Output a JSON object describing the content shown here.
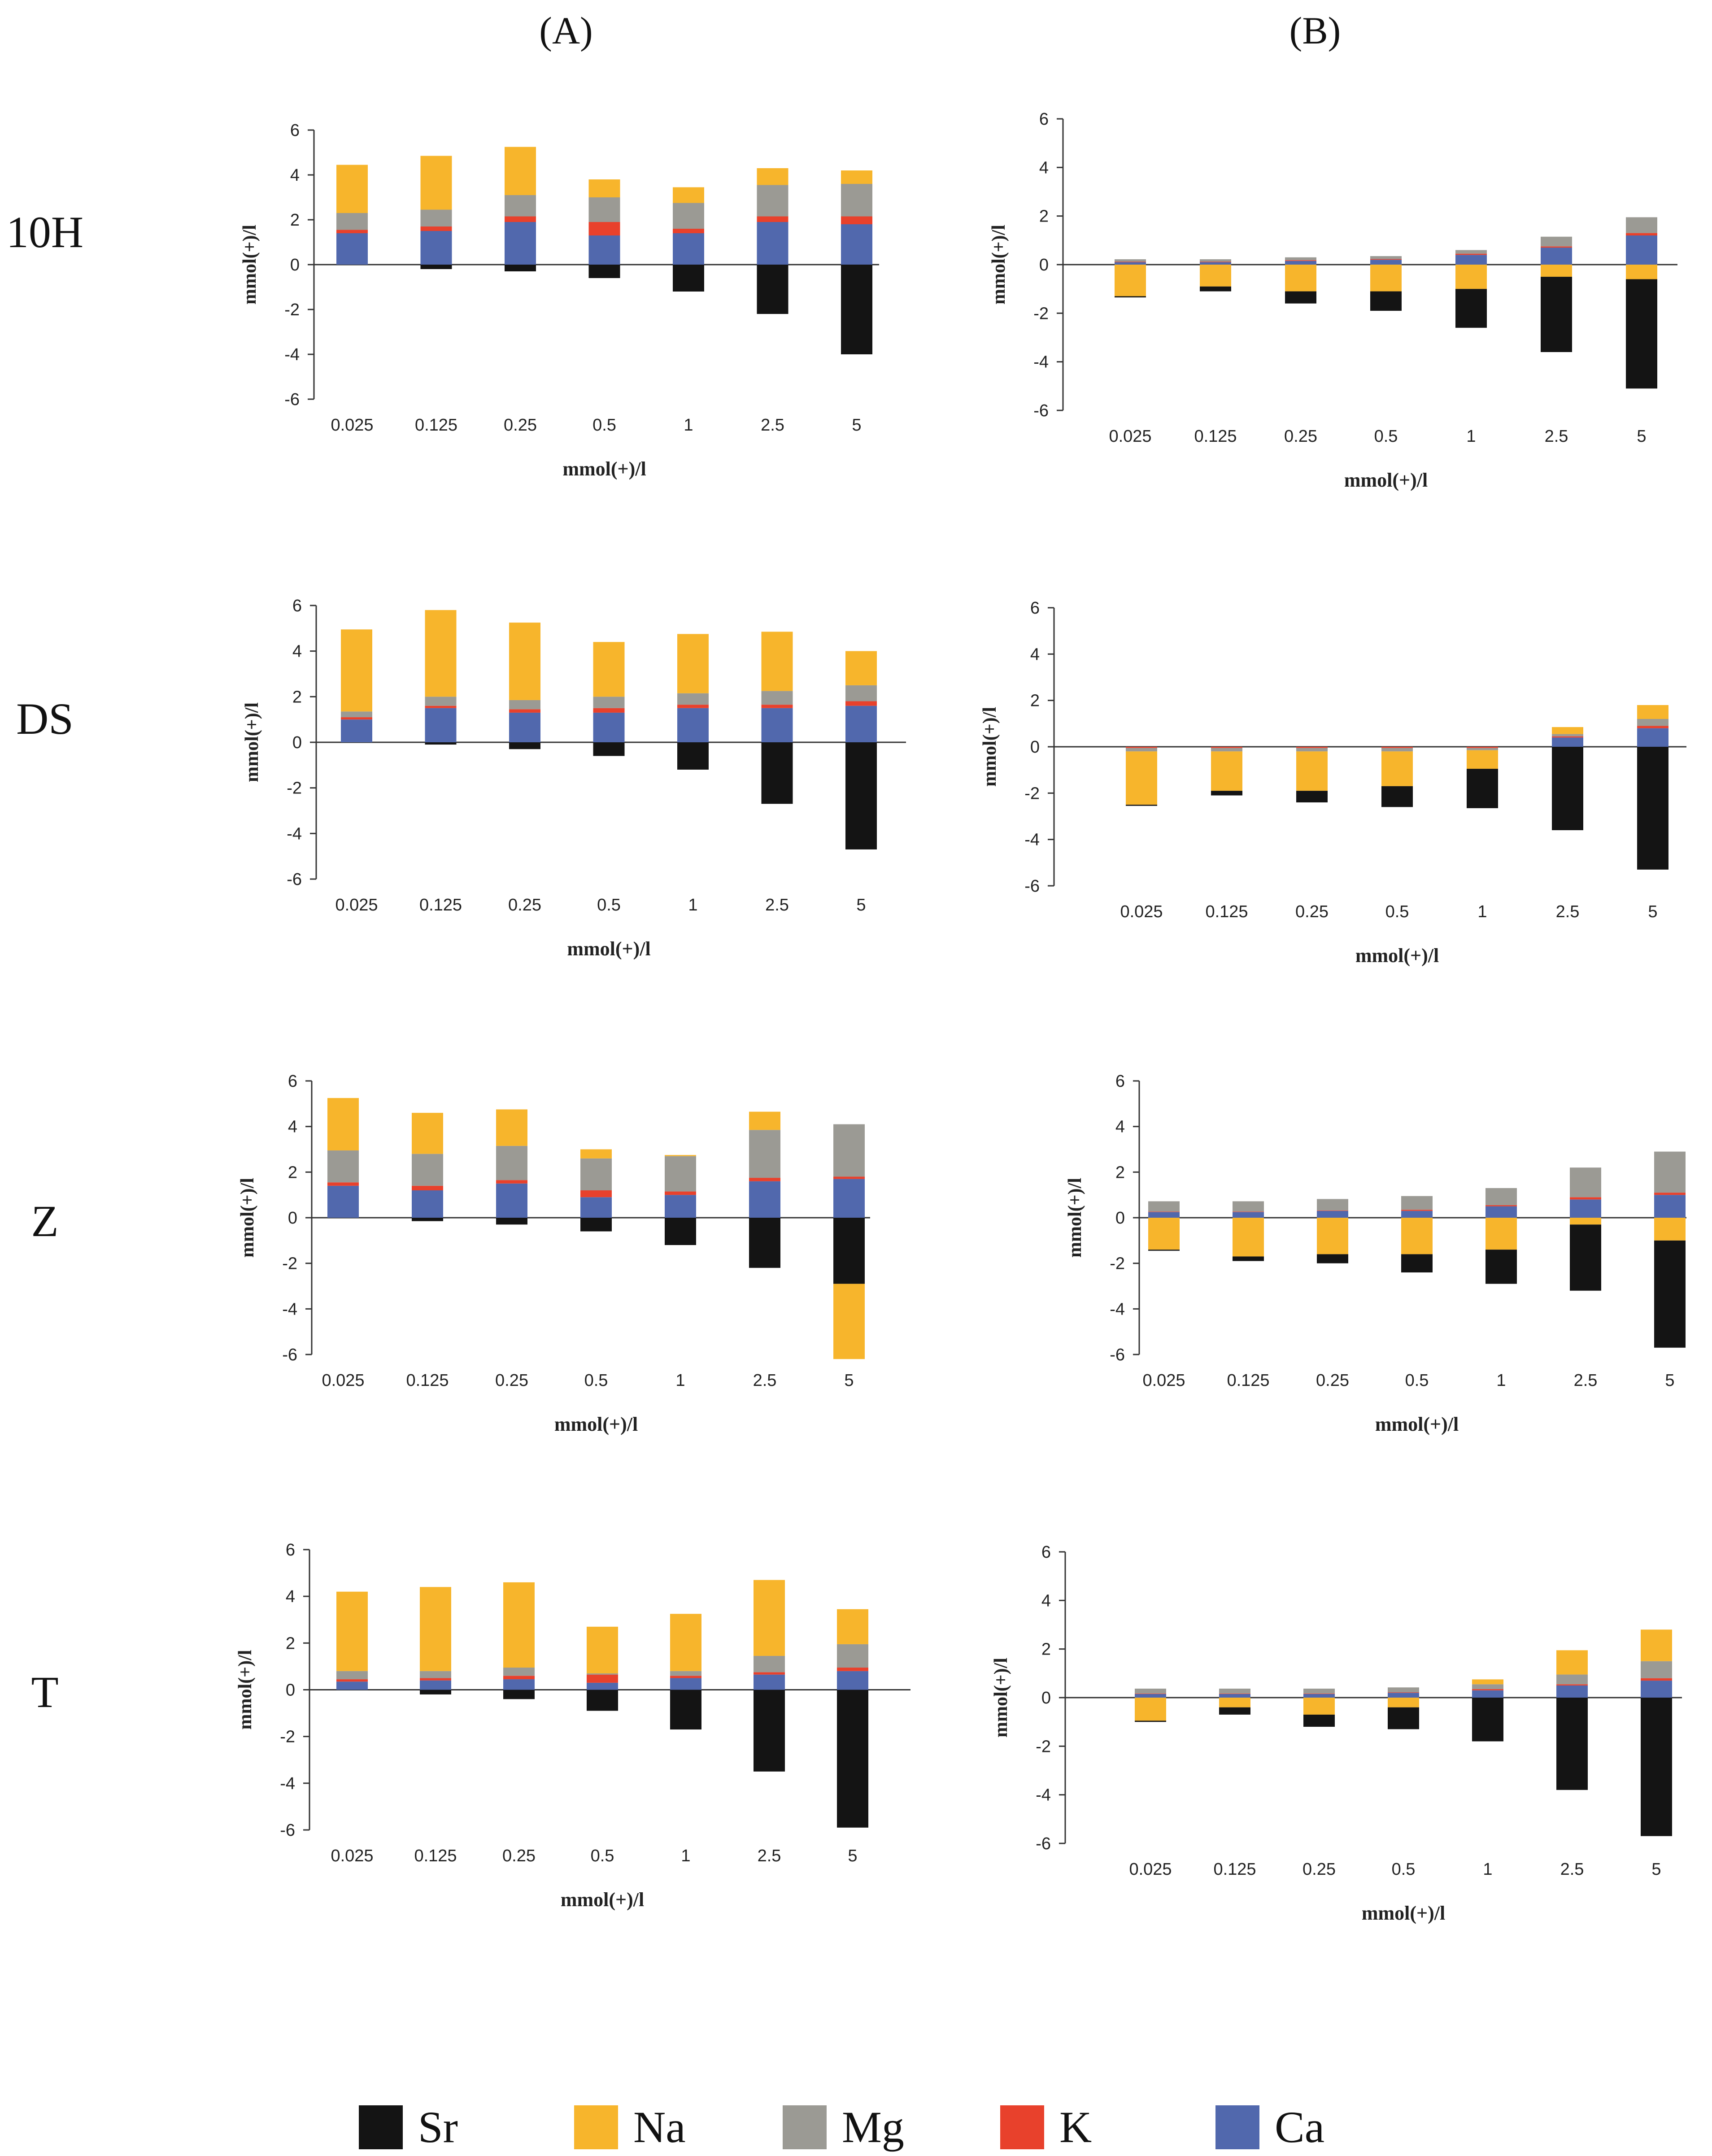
{
  "figure": {
    "column_labels": [
      "(A)",
      "(B)"
    ],
    "row_labels": [
      "10H",
      "DS",
      "Z",
      "T"
    ],
    "legend": [
      {
        "name": "Sr",
        "color": "#141414"
      },
      {
        "name": "Na",
        "color": "#F7B52C"
      },
      {
        "name": "Mg",
        "color": "#9B9A94"
      },
      {
        "name": "K",
        "color": "#E8412C"
      },
      {
        "name": "Ca",
        "color": "#5168AD"
      }
    ]
  },
  "chart_data": [
    {
      "id": "10H-A",
      "type": "bar",
      "stacked": true,
      "title": "",
      "xlabel": "mmol(+)/l",
      "ylabel": "mmol(+)/l",
      "ylim": [
        -6,
        6
      ],
      "yticks": [
        6,
        4,
        2,
        0,
        -2,
        -4,
        -6
      ],
      "categories": [
        "0.025",
        "0.125",
        "0.25",
        "0.5",
        "1",
        "2.5",
        "5"
      ],
      "series": [
        {
          "name": "Ca",
          "values": [
            1.4,
            1.5,
            1.9,
            1.3,
            1.4,
            1.9,
            1.8
          ]
        },
        {
          "name": "K",
          "values": [
            0.15,
            0.2,
            0.25,
            0.6,
            0.2,
            0.25,
            0.35
          ]
        },
        {
          "name": "Mg",
          "values": [
            0.75,
            0.75,
            0.95,
            1.1,
            1.15,
            1.4,
            1.45
          ]
        },
        {
          "name": "Na",
          "values": [
            2.15,
            2.4,
            2.15,
            0.8,
            0.7,
            0.75,
            0.6
          ]
        },
        {
          "name": "Sr",
          "values": [
            0,
            -0.2,
            -0.3,
            -0.6,
            -1.2,
            -2.2,
            -4.0
          ]
        }
      ]
    },
    {
      "id": "10H-B",
      "type": "bar",
      "stacked": true,
      "title": "",
      "xlabel": "mmol(+)/l",
      "ylabel": "mmol(+)/l",
      "ylim": [
        -6,
        6
      ],
      "yticks": [
        6,
        4,
        2,
        0,
        -2,
        -4,
        -6
      ],
      "categories": [
        "0.025",
        "0.125",
        "0.25",
        "0.5",
        "1",
        "2.5",
        "5"
      ],
      "series": [
        {
          "name": "Ca",
          "values": [
            0.1,
            0.1,
            0.15,
            0.2,
            0.4,
            0.7,
            1.2
          ]
        },
        {
          "name": "K",
          "values": [
            0.02,
            0.02,
            0.03,
            0.03,
            0.05,
            0.05,
            0.1
          ]
        },
        {
          "name": "Mg",
          "values": [
            0.1,
            0.1,
            0.12,
            0.12,
            0.15,
            0.4,
            0.65
          ]
        },
        {
          "name": "Na",
          "values": [
            -1.3,
            -0.9,
            -1.1,
            -1.1,
            -1.0,
            -0.5,
            -0.6
          ]
        },
        {
          "name": "Sr",
          "values": [
            -0.05,
            -0.2,
            -0.5,
            -0.8,
            -1.6,
            -3.1,
            -4.5
          ]
        }
      ]
    },
    {
      "id": "DS-A",
      "type": "bar",
      "stacked": true,
      "title": "",
      "xlabel": "mmol(+)/l",
      "ylabel": "mmol(+)/l",
      "ylim": [
        -6,
        6
      ],
      "yticks": [
        6,
        4,
        2,
        0,
        -2,
        -4,
        -6
      ],
      "categories": [
        "0.025",
        "0.125",
        "0.25",
        "0.5",
        "1",
        "2.5",
        "5"
      ],
      "series": [
        {
          "name": "Ca",
          "values": [
            1.0,
            1.5,
            1.3,
            1.3,
            1.5,
            1.5,
            1.6
          ]
        },
        {
          "name": "K",
          "values": [
            0.1,
            0.1,
            0.15,
            0.2,
            0.15,
            0.15,
            0.2
          ]
        },
        {
          "name": "Mg",
          "values": [
            0.25,
            0.4,
            0.4,
            0.5,
            0.5,
            0.6,
            0.7
          ]
        },
        {
          "name": "Na",
          "values": [
            3.6,
            3.8,
            3.4,
            2.4,
            2.6,
            2.6,
            1.5
          ]
        },
        {
          "name": "Sr",
          "values": [
            0,
            -0.1,
            -0.3,
            -0.6,
            -1.2,
            -2.7,
            -4.7
          ]
        }
      ]
    },
    {
      "id": "DS-B",
      "type": "bar",
      "stacked": true,
      "title": "",
      "xlabel": "mmol(+)/l",
      "ylabel": "mmol(+)/l",
      "ylim": [
        -6,
        6
      ],
      "yticks": [
        6,
        4,
        2,
        0,
        -2,
        -4,
        -6
      ],
      "categories": [
        "0.025",
        "0.125",
        "0.25",
        "0.5",
        "1",
        "2.5",
        "5"
      ],
      "series": [
        {
          "name": "Ca",
          "values": [
            0,
            0,
            0,
            0,
            0,
            0.4,
            0.8
          ]
        },
        {
          "name": "K",
          "values": [
            -0.05,
            -0.05,
            -0.05,
            -0.05,
            -0.05,
            0.05,
            0.1
          ]
        },
        {
          "name": "Mg",
          "values": [
            -0.15,
            -0.15,
            -0.15,
            -0.15,
            -0.1,
            0.1,
            0.3
          ]
        },
        {
          "name": "Na",
          "values": [
            -2.3,
            -1.7,
            -1.7,
            -1.5,
            -0.8,
            0.3,
            0.6
          ]
        },
        {
          "name": "Sr",
          "values": [
            -0.05,
            -0.2,
            -0.5,
            -0.9,
            -1.7,
            -3.6,
            -5.3
          ]
        }
      ]
    },
    {
      "id": "Z-A",
      "type": "bar",
      "stacked": true,
      "title": "",
      "xlabel": "mmol(+)/l",
      "ylabel": "mmol(+)/l",
      "ylim": [
        -6,
        6
      ],
      "yticks": [
        6,
        4,
        2,
        0,
        -2,
        -4,
        -6
      ],
      "categories": [
        "0.025",
        "0.125",
        "0.25",
        "0.5",
        "1",
        "2.5",
        "5"
      ],
      "series": [
        {
          "name": "Ca",
          "values": [
            1.4,
            1.2,
            1.5,
            0.9,
            1.0,
            1.6,
            1.7
          ]
        },
        {
          "name": "K",
          "values": [
            0.15,
            0.2,
            0.15,
            0.3,
            0.15,
            0.15,
            0.1
          ]
        },
        {
          "name": "Mg",
          "values": [
            1.4,
            1.4,
            1.5,
            1.4,
            1.55,
            2.1,
            2.3
          ]
        },
        {
          "name": "Na",
          "values": [
            2.3,
            1.8,
            1.6,
            0.4,
            0.05,
            0.8,
            0
          ]
        },
        {
          "name": "Sr",
          "values": [
            0,
            -0.15,
            -0.3,
            -0.6,
            -1.2,
            -2.2,
            -2.9
          ]
        },
        {
          "name": "Na (negative)",
          "values": [
            0,
            0,
            0,
            0,
            0,
            0,
            -3.3
          ]
        }
      ]
    },
    {
      "id": "Z-B",
      "type": "bar",
      "stacked": true,
      "title": "",
      "xlabel": "mmol(+)/l",
      "ylabel": "mmol(+)/l",
      "ylim": [
        -6,
        6
      ],
      "yticks": [
        6,
        4,
        2,
        0,
        -2,
        -4,
        -6
      ],
      "categories": [
        "0.025",
        "0.125",
        "0.25",
        "0.5",
        "1",
        "2.5",
        "5"
      ],
      "series": [
        {
          "name": "Ca",
          "values": [
            0.25,
            0.25,
            0.3,
            0.3,
            0.5,
            0.8,
            1.0
          ]
        },
        {
          "name": "K",
          "values": [
            0.02,
            0.02,
            0.02,
            0.05,
            0.05,
            0.1,
            0.1
          ]
        },
        {
          "name": "Mg",
          "values": [
            0.45,
            0.45,
            0.5,
            0.6,
            0.75,
            1.3,
            1.8
          ]
        },
        {
          "name": "Na",
          "values": [
            -1.4,
            -1.7,
            -1.6,
            -1.6,
            -1.4,
            -0.3,
            -1.0
          ]
        },
        {
          "name": "Sr",
          "values": [
            -0.05,
            -0.2,
            -0.4,
            -0.8,
            -1.5,
            -2.9,
            -4.7
          ]
        }
      ]
    },
    {
      "id": "T-A",
      "type": "bar",
      "stacked": true,
      "title": "",
      "xlabel": "mmol(+)/l",
      "ylabel": "mmol(+)/l",
      "ylim": [
        -6,
        6
      ],
      "yticks": [
        6,
        4,
        2,
        0,
        -2,
        -4,
        -6
      ],
      "categories": [
        "0.025",
        "0.125",
        "0.25",
        "0.5",
        "1",
        "2.5",
        "5"
      ],
      "series": [
        {
          "name": "Ca",
          "values": [
            0.35,
            0.4,
            0.45,
            0.3,
            0.5,
            0.65,
            0.8
          ]
        },
        {
          "name": "K",
          "values": [
            0.1,
            0.1,
            0.15,
            0.35,
            0.1,
            0.1,
            0.15
          ]
        },
        {
          "name": "Mg",
          "values": [
            0.35,
            0.3,
            0.35,
            0.05,
            0.2,
            0.7,
            1.0
          ]
        },
        {
          "name": "Na",
          "values": [
            3.4,
            3.6,
            3.65,
            2.0,
            2.45,
            3.25,
            1.5
          ]
        },
        {
          "name": "Sr",
          "values": [
            0,
            -0.2,
            -0.4,
            -0.9,
            -1.7,
            -3.5,
            -5.9
          ]
        }
      ]
    },
    {
      "id": "T-B",
      "type": "bar",
      "stacked": true,
      "title": "",
      "xlabel": "mmol(+)/l",
      "ylabel": "mmol(+)/l",
      "ylim": [
        -6,
        6
      ],
      "yticks": [
        6,
        4,
        2,
        0,
        -2,
        -4,
        -6
      ],
      "categories": [
        "0.025",
        "0.125",
        "0.25",
        "0.5",
        "1",
        "2.5",
        "5"
      ],
      "series": [
        {
          "name": "Ca",
          "values": [
            0.15,
            0.15,
            0.15,
            0.2,
            0.3,
            0.5,
            0.7
          ]
        },
        {
          "name": "K",
          "values": [
            0.02,
            0.02,
            0.02,
            0.02,
            0.05,
            0.05,
            0.1
          ]
        },
        {
          "name": "Mg",
          "values": [
            0.2,
            0.2,
            0.2,
            0.2,
            0.2,
            0.4,
            0.7
          ]
        },
        {
          "name": "Na",
          "values": [
            -0.95,
            -0.4,
            -0.7,
            -0.4,
            0.2,
            1.0,
            1.3
          ]
        },
        {
          "name": "Sr",
          "values": [
            -0.05,
            -0.3,
            -0.5,
            -0.9,
            -1.8,
            -3.8,
            -5.7
          ]
        }
      ]
    }
  ]
}
